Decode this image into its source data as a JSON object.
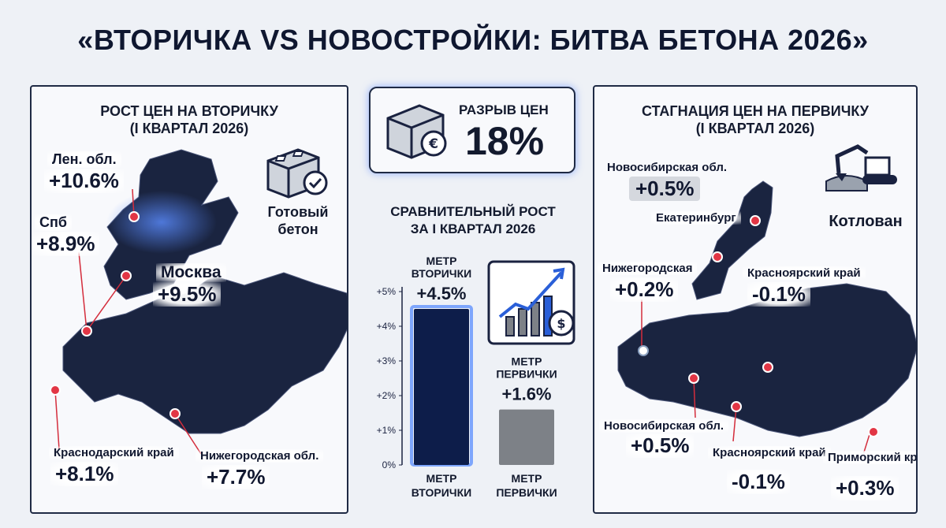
{
  "title": "«ВТОРИЧКА VS НОВОСТРОЙКИ: БИТВА БЕТОНА 2026»",
  "left_panel": {
    "title_line1": "РОСТ ЦЕН НА ВТОРИЧКУ",
    "title_line2": "(I КВАРТАЛ 2026)",
    "icon": "concrete-block-check-icon",
    "icon_caption_line1": "Готовый",
    "icon_caption_line2": "бетон",
    "regions": [
      {
        "name": "Лен. обл.",
        "value": "+10.6%"
      },
      {
        "name": "Спб",
        "value": "+8.9%"
      },
      {
        "name": "Москва",
        "value": "+9.5%"
      },
      {
        "name": "Краснодарский край",
        "value": "+8.1%"
      },
      {
        "name": "Нижегородская обл.",
        "value": "+7.7%"
      }
    ]
  },
  "gap_panel": {
    "icon": "concrete-block-euro-icon",
    "label": "РАЗРЫВ ЦЕН",
    "value": "18%"
  },
  "right_panel": {
    "title_line1": "СТАГНАЦИЯ ЦЕН НА ПЕРВИЧКУ",
    "title_line2": "(I КВАРТАЛ 2026)",
    "icon": "excavator-icon",
    "icon_caption": "Котлован",
    "regions": [
      {
        "name": "Новосибирская обл.",
        "value": "+0.5%"
      },
      {
        "name": "Екатеринбург",
        "value": ""
      },
      {
        "name": "Нижегородская",
        "value": "+0.2%"
      },
      {
        "name": "Красноярский край",
        "value": "-0.1%"
      },
      {
        "name": "Новосибирская обл.",
        "value": "+0.5%"
      },
      {
        "name": "Красноярский край",
        "value": "-0.1%"
      },
      {
        "name": "Приморский край",
        "value": "+0.3%"
      }
    ]
  },
  "chart_data": {
    "type": "bar",
    "title_line1": "СРАВНИТЕЛЬНЫЙ РОСТ",
    "title_line2": "ЗА I КВАРТАЛ 2026",
    "categories_line1": [
      "МЕТР",
      "МЕТР"
    ],
    "categories_line2": [
      "ВТОРИЧКИ",
      "ПЕРВИЧКИ"
    ],
    "values": [
      4.5,
      1.6
    ],
    "value_labels": [
      "+4.5%",
      "+1.6%"
    ],
    "bar_top_labels_line1": [
      "МЕТР",
      "МЕТР"
    ],
    "bar_top_labels_line2": [
      "ВТОРИЧКИ",
      "ПЕРВИЧКИ"
    ],
    "yticks": [
      "0%",
      "+1%",
      "+2%",
      "+3%",
      "+4%",
      "+5%"
    ],
    "ylim": [
      0,
      5
    ],
    "colors": [
      "#0d1d4a",
      "#7d8187"
    ],
    "icon": "growth-chart-dollar-icon"
  }
}
